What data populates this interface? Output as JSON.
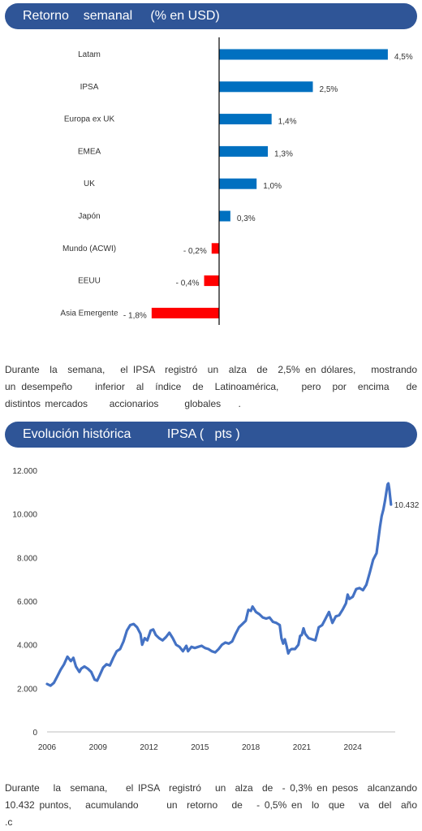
{
  "section1": {
    "title": "Retorno    semanal     (% en USD)",
    "paragraph": "Durante  la  semana,   el IPSA  registró  un  alza  de  2,5% en dólares,   mostrando    un desempeño    inferior  al  índice  de  Latinoamérica,    pero  por  encima   de  distintos mercados     accionarios      globales    ."
  },
  "section2": {
    "title": "Evolución histórica          IPSA (   pts )",
    "paragraph": "Durante   la  semana,    el IPSA  registró   un  alza  de  - 0,3% en pesos  alcanzando      10.432 puntos,   acumulando      un  retorno   de   - 0,5% en  lo  que   va  del  año  .c"
  },
  "chart_data": [
    {
      "type": "bar",
      "orientation": "horizontal",
      "categories": [
        "Latam",
        "IPSA",
        "Europa ex UK",
        "EMEA",
        "UK",
        "Japón",
        "Mundo (ACWI)",
        "EEUU",
        "Asia Emergente"
      ],
      "values": [
        4.5,
        2.5,
        1.4,
        1.3,
        1.0,
        0.3,
        -0.2,
        -0.4,
        -1.8
      ],
      "labels": [
        "4,5%",
        "2,5%",
        "1,4%",
        "1,3%",
        "1,0%",
        "0,3%",
        "- 0,2%",
        "- 0,4%",
        "- 1,8%"
      ],
      "colors": {
        "positive": "#0070c0",
        "negative": "#ff0000"
      }
    },
    {
      "type": "line",
      "series_color": "#4472c4",
      "xlim": [
        2006,
        2026.5
      ],
      "ylim": [
        0,
        12000
      ],
      "xticks": [
        2006,
        2009,
        2012,
        2015,
        2018,
        2021,
        2024
      ],
      "xtick_labels": [
        "2006",
        "2009",
        "2012",
        "2015",
        "2018",
        "2021",
        "2024"
      ],
      "yticks": [
        0,
        2000,
        4000,
        6000,
        8000,
        10000,
        12000
      ],
      "ytick_labels": [
        "0",
        "2.000",
        "4.000",
        "6.000",
        "8.000",
        "10.000",
        "12.000"
      ],
      "last_label": "10.432",
      "points": [
        [
          2006.0,
          2200
        ],
        [
          2006.2,
          2120
        ],
        [
          2006.4,
          2250
        ],
        [
          2006.6,
          2550
        ],
        [
          2006.8,
          2850
        ],
        [
          2007.0,
          3100
        ],
        [
          2007.2,
          3450
        ],
        [
          2007.4,
          3250
        ],
        [
          2007.55,
          3400
        ],
        [
          2007.7,
          3000
        ],
        [
          2007.9,
          2750
        ],
        [
          2008.0,
          2900
        ],
        [
          2008.2,
          3000
        ],
        [
          2008.4,
          2900
        ],
        [
          2008.6,
          2750
        ],
        [
          2008.8,
          2400
        ],
        [
          2008.95,
          2350
        ],
        [
          2009.1,
          2600
        ],
        [
          2009.3,
          2950
        ],
        [
          2009.5,
          3100
        ],
        [
          2009.7,
          3050
        ],
        [
          2009.9,
          3400
        ],
        [
          2010.1,
          3700
        ],
        [
          2010.3,
          3800
        ],
        [
          2010.5,
          4150
        ],
        [
          2010.7,
          4650
        ],
        [
          2010.9,
          4900
        ],
        [
          2011.1,
          4950
        ],
        [
          2011.3,
          4800
        ],
        [
          2011.5,
          4500
        ],
        [
          2011.6,
          4000
        ],
        [
          2011.75,
          4300
        ],
        [
          2011.9,
          4200
        ],
        [
          2012.1,
          4650
        ],
        [
          2012.25,
          4700
        ],
        [
          2012.4,
          4450
        ],
        [
          2012.6,
          4300
        ],
        [
          2012.8,
          4200
        ],
        [
          2013.0,
          4350
        ],
        [
          2013.2,
          4550
        ],
        [
          2013.4,
          4300
        ],
        [
          2013.6,
          4000
        ],
        [
          2013.8,
          3900
        ],
        [
          2014.0,
          3700
        ],
        [
          2014.2,
          3950
        ],
        [
          2014.3,
          3700
        ],
        [
          2014.5,
          3900
        ],
        [
          2014.7,
          3850
        ],
        [
          2014.9,
          3900
        ],
        [
          2015.1,
          3950
        ],
        [
          2015.3,
          3850
        ],
        [
          2015.5,
          3800
        ],
        [
          2015.7,
          3700
        ],
        [
          2015.9,
          3650
        ],
        [
          2016.1,
          3800
        ],
        [
          2016.3,
          4000
        ],
        [
          2016.5,
          4100
        ],
        [
          2016.7,
          4050
        ],
        [
          2016.9,
          4150
        ],
        [
          2017.1,
          4500
        ],
        [
          2017.3,
          4800
        ],
        [
          2017.5,
          4950
        ],
        [
          2017.7,
          5100
        ],
        [
          2017.85,
          5600
        ],
        [
          2018.0,
          5550
        ],
        [
          2018.1,
          5750
        ],
        [
          2018.3,
          5500
        ],
        [
          2018.5,
          5400
        ],
        [
          2018.7,
          5250
        ],
        [
          2018.9,
          5200
        ],
        [
          2019.1,
          5250
        ],
        [
          2019.3,
          5050
        ],
        [
          2019.5,
          5000
        ],
        [
          2019.7,
          4900
        ],
        [
          2019.8,
          4300
        ],
        [
          2019.9,
          4050
        ],
        [
          2020.0,
          4250
        ],
        [
          2020.1,
          3950
        ],
        [
          2020.2,
          3600
        ],
        [
          2020.3,
          3750
        ],
        [
          2020.4,
          3800
        ],
        [
          2020.6,
          3800
        ],
        [
          2020.8,
          4000
        ],
        [
          2020.9,
          4400
        ],
        [
          2021.0,
          4450
        ],
        [
          2021.1,
          4750
        ],
        [
          2021.2,
          4500
        ],
        [
          2021.4,
          4300
        ],
        [
          2021.6,
          4250
        ],
        [
          2021.8,
          4200
        ],
        [
          2021.9,
          4500
        ],
        [
          2022.0,
          4800
        ],
        [
          2022.2,
          4900
        ],
        [
          2022.4,
          5200
        ],
        [
          2022.6,
          5500
        ],
        [
          2022.8,
          5000
        ],
        [
          2023.0,
          5300
        ],
        [
          2023.2,
          5350
        ],
        [
          2023.4,
          5600
        ],
        [
          2023.6,
          5900
        ],
        [
          2023.7,
          6300
        ],
        [
          2023.8,
          6100
        ],
        [
          2024.0,
          6200
        ],
        [
          2024.2,
          6550
        ],
        [
          2024.4,
          6600
        ],
        [
          2024.6,
          6500
        ],
        [
          2024.8,
          6750
        ],
        [
          2025.0,
          7300
        ],
        [
          2025.2,
          7900
        ],
        [
          2025.4,
          8200
        ],
        [
          2025.5,
          8800
        ],
        [
          2025.6,
          9400
        ],
        [
          2025.7,
          9900
        ],
        [
          2025.8,
          10200
        ],
        [
          2025.9,
          10600
        ],
        [
          2026.0,
          11100
        ],
        [
          2026.05,
          11350
        ],
        [
          2026.1,
          11400
        ],
        [
          2026.15,
          11150
        ],
        [
          2026.2,
          10800
        ],
        [
          2026.25,
          10432
        ]
      ]
    }
  ]
}
